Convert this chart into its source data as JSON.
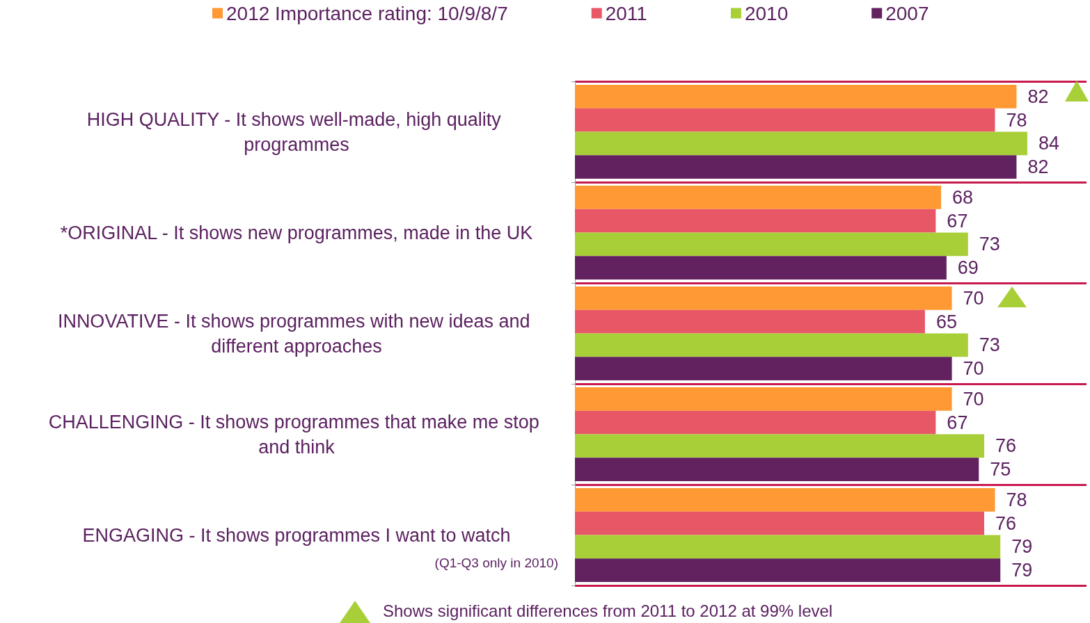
{
  "chart_data": {
    "type": "bar",
    "orientation": "horizontal",
    "categories": [
      "HIGH QUALITY - It shows well-made, high quality programmes",
      "*ORIGINAL - It shows new programmes, made in the UK",
      "INNOVATIVE - It shows programmes with new ideas and different approaches",
      "CHALLENGING - It shows programmes that make me stop and think",
      "ENGAGING - It shows programmes I want to watch"
    ],
    "series": [
      {
        "name": "2012 Importance rating: 10/9/8/7",
        "color": "#ff9933",
        "values": [
          82,
          68,
          70,
          70,
          78
        ]
      },
      {
        "name": "2011",
        "color": "#e85766",
        "values": [
          78,
          67,
          65,
          67,
          76
        ]
      },
      {
        "name": "2010",
        "color": "#a8cf38",
        "values": [
          84,
          73,
          73,
          76,
          79
        ]
      },
      {
        "name": "2007",
        "color": "#62225f",
        "values": [
          82,
          69,
          70,
          75,
          79
        ]
      }
    ],
    "xlim": [
      0,
      95
    ],
    "tick_labels": "y",
    "grid": "y",
    "legend": "top",
    "data_labels": true,
    "annotations": [
      "(Q1-Q3 only in 2010)",
      "Shows significant differences from 2011 to 2012 at 99% level"
    ]
  }
}
